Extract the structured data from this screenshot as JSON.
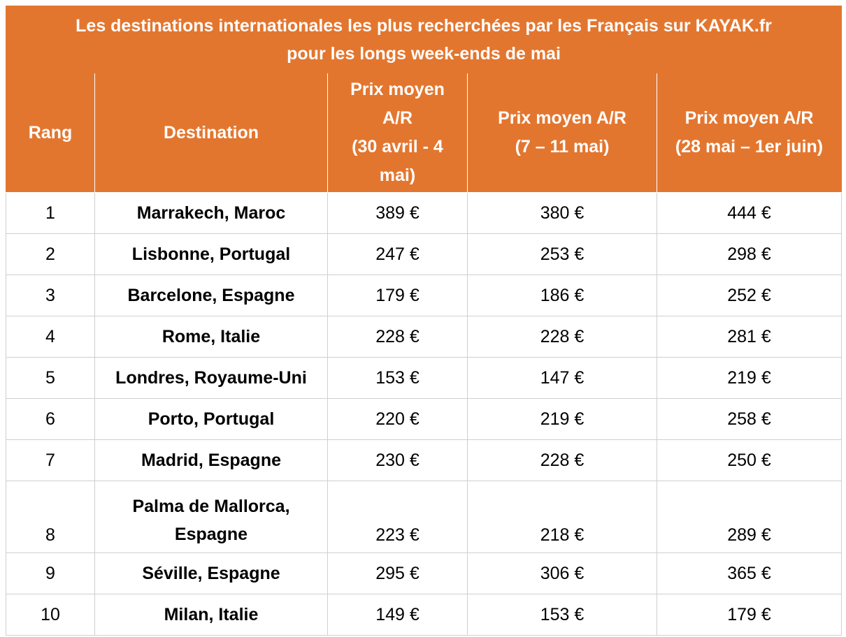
{
  "title_line1": "Les destinations internationales les plus recherchées par les Français sur KAYAK.fr",
  "title_line2": "pour les longs week-ends de mai",
  "headers": {
    "rank": "Rang",
    "destination": "Destination",
    "p1": [
      "Prix moyen",
      "A/R",
      "(30 avril - 4",
      "mai)"
    ],
    "p2": [
      "Prix moyen A/R",
      "(7 – 11 mai)"
    ],
    "p3": [
      "Prix moyen A/R",
      "(28 mai – 1er juin)"
    ]
  },
  "rows": [
    {
      "rank": "1",
      "destination": [
        "Marrakech, Maroc"
      ],
      "p1": "389 €",
      "p2": "380 €",
      "p3": "444 €"
    },
    {
      "rank": "2",
      "destination": [
        "Lisbonne, Portugal"
      ],
      "p1": "247 €",
      "p2": "253 €",
      "p3": "298 €"
    },
    {
      "rank": "3",
      "destination": [
        "Barcelone, Espagne"
      ],
      "p1": "179 €",
      "p2": "186 €",
      "p3": "252 €"
    },
    {
      "rank": "4",
      "destination": [
        "Rome, Italie"
      ],
      "p1": "228 €",
      "p2": "228 €",
      "p3": "281 €"
    },
    {
      "rank": "5",
      "destination": [
        "Londres, Royaume-Uni"
      ],
      "p1": "153 €",
      "p2": "147 €",
      "p3": "219 €"
    },
    {
      "rank": "6",
      "destination": [
        "Porto, Portugal"
      ],
      "p1": "220 €",
      "p2": "219 €",
      "p3": "258 €"
    },
    {
      "rank": "7",
      "destination": [
        "Madrid, Espagne"
      ],
      "p1": "230 €",
      "p2": "228 €",
      "p3": "250 €"
    },
    {
      "rank": "8",
      "destination": [
        "Palma de Mallorca,",
        "Espagne"
      ],
      "p1": "223 €",
      "p2": "218 €",
      "p3": "289 €"
    },
    {
      "rank": "9",
      "destination": [
        "Séville, Espagne"
      ],
      "p1": "295 €",
      "p2": "306 €",
      "p3": "365 €"
    },
    {
      "rank": "10",
      "destination": [
        "Milan, Italie"
      ],
      "p1": "149 €",
      "p2": "153 €",
      "p3": "179 €"
    }
  ]
}
